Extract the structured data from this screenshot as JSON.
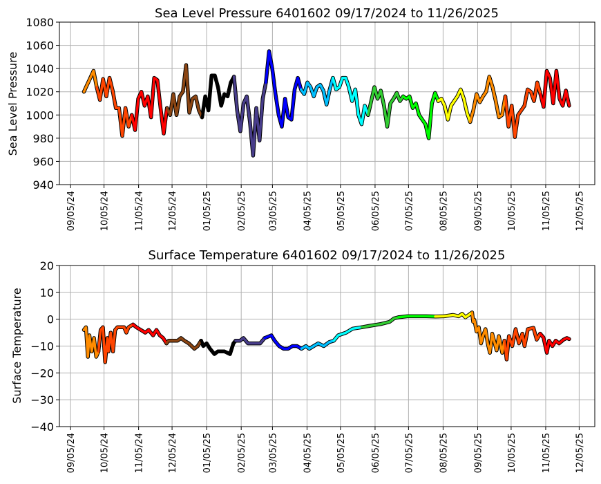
{
  "chart_data": [
    {
      "type": "line",
      "title": "Sea Level Pressure 6401602  09/17/2024 to 11/26/2025",
      "xlabel": "",
      "ylabel": "Sea Level Pressure",
      "ylim": [
        940,
        1080
      ],
      "yticks": [
        940,
        960,
        980,
        1000,
        1020,
        1040,
        1060,
        1080
      ],
      "ytick_labels": [
        "940",
        "960",
        "980",
        "1000",
        "1020",
        "1040",
        "1060",
        "1080"
      ],
      "xlim": [
        "2024-08-26",
        "2025-12-19"
      ],
      "xticks": [
        "2024-09-05",
        "2024-10-05",
        "2024-11-05",
        "2024-12-05",
        "2025-01-05",
        "2025-02-05",
        "2025-03-05",
        "2025-04-05",
        "2025-05-05",
        "2025-06-05",
        "2025-07-05",
        "2025-08-05",
        "2025-09-05",
        "2025-10-05",
        "2025-11-05",
        "2025-12-05"
      ],
      "xtick_labels": [
        "09/05/24",
        "10/05/24",
        "11/05/24",
        "12/05/24",
        "01/05/25",
        "02/05/25",
        "03/05/25",
        "04/05/25",
        "05/05/25",
        "06/05/25",
        "07/05/25",
        "08/05/25",
        "09/05/25",
        "10/05/25",
        "11/05/25",
        "12/05/25"
      ],
      "grid": true,
      "start_date": "2024-09-17",
      "end_date": "2025-11-26",
      "values_evenly_spaced": [
        1020,
        1026,
        1032,
        1038,
        1024,
        1013,
        1031,
        1016,
        1032,
        1021,
        1006,
        1006,
        982,
        1006,
        990,
        1000,
        987,
        1014,
        1020,
        1008,
        1016,
        998,
        1032,
        1030,
        1006,
        984,
        1006,
        1000,
        1018,
        1000,
        1016,
        1020,
        1043,
        1002,
        1014,
        1016,
        1004,
        998,
        1016,
        1004,
        1034,
        1034,
        1024,
        1008,
        1018,
        1016,
        1028,
        1033,
        1004,
        986,
        1010,
        1016,
        994,
        965,
        1006,
        978,
        1014,
        1028,
        1055,
        1040,
        1018,
        1000,
        990,
        1014,
        998,
        996,
        1022,
        1032,
        1022,
        1018,
        1028,
        1024,
        1016,
        1024,
        1026,
        1021,
        1009,
        1022,
        1032,
        1022,
        1024,
        1032,
        1032,
        1024,
        1012,
        1022,
        1000,
        992,
        1008,
        1000,
        1012,
        1024,
        1014,
        1021,
        1008,
        990,
        1010,
        1014,
        1019,
        1012,
        1016,
        1014,
        1016,
        1006,
        1010,
        1000,
        996,
        992,
        980,
        1010,
        1019,
        1012,
        1014,
        1008,
        996,
        1008,
        1012,
        1016,
        1022,
        1014,
        1002,
        994,
        1004,
        1018,
        1011,
        1016,
        1020,
        1033,
        1024,
        1012,
        998,
        1000,
        1016,
        990,
        1008,
        981,
        1000,
        1004,
        1008,
        1022,
        1020,
        1012,
        1028,
        1018,
        1007,
        1038,
        1032,
        1010,
        1038,
        1014,
        1008,
        1021,
        1008
      ]
    },
    {
      "type": "line",
      "title": "Surface Temperature 6401602  09/17/2024 to 11/26/2025",
      "xlabel": "",
      "ylabel": "Surface Temperature",
      "ylim": [
        -40,
        20
      ],
      "yticks": [
        -40,
        -30,
        -20,
        -10,
        0,
        10,
        20
      ],
      "ytick_labels": [
        "−40",
        "−30",
        "−20",
        "−10",
        "0",
        "10",
        "20"
      ],
      "xlim": [
        "2024-08-26",
        "2025-12-19"
      ],
      "xticks": [
        "2024-09-05",
        "2024-10-05",
        "2024-11-05",
        "2024-12-05",
        "2025-01-05",
        "2025-02-05",
        "2025-03-05",
        "2025-04-05",
        "2025-05-05",
        "2025-06-05",
        "2025-07-05",
        "2025-08-05",
        "2025-09-05",
        "2025-10-05",
        "2025-11-05",
        "2025-12-05"
      ],
      "xtick_labels": [
        "09/05/24",
        "10/05/24",
        "11/05/24",
        "12/05/24",
        "01/05/25",
        "02/05/25",
        "03/05/25",
        "04/05/25",
        "05/05/25",
        "06/05/25",
        "07/05/25",
        "08/05/25",
        "09/05/25",
        "10/05/25",
        "11/05/25",
        "12/05/25"
      ],
      "grid": true,
      "start_date": "2024-09-17",
      "days_since_start": [
        0,
        1.8,
        3.5,
        4.9,
        7,
        9,
        11,
        13,
        15,
        17,
        19,
        21,
        22,
        24,
        26,
        28,
        30,
        33,
        36,
        38,
        40,
        44,
        47,
        51,
        55,
        58,
        62,
        65,
        68,
        71,
        74,
        76,
        80,
        84,
        87,
        90,
        94,
        99,
        102,
        105,
        107,
        110,
        113,
        117,
        120,
        123,
        126,
        131,
        134,
        136,
        140,
        143,
        147,
        151,
        154,
        158,
        162,
        168,
        171,
        175,
        179,
        183,
        187,
        191,
        195,
        199,
        202,
        206,
        210,
        215,
        220,
        224,
        228,
        235,
        241,
        249,
        257,
        266,
        274,
        278,
        282,
        290,
        298,
        307,
        315,
        323,
        331,
        336,
        339,
        342,
        345,
        348,
        349,
        350,
        352,
        354,
        356,
        358,
        360,
        362,
        364,
        366,
        370,
        372,
        375,
        377,
        379,
        381,
        384,
        387,
        390,
        393,
        395,
        398,
        403,
        406,
        409,
        412,
        415,
        417,
        420,
        423,
        426,
        430,
        433,
        435
      ],
      "values": [
        -4,
        -3,
        -14,
        -6,
        -12,
        -7,
        -14,
        -12,
        -4,
        -3,
        -16,
        -7,
        -12,
        -5,
        -12,
        -4,
        -3,
        -3,
        -3,
        -5,
        -3,
        -2,
        -3,
        -4,
        -5,
        -4,
        -6,
        -4,
        -6,
        -7,
        -9,
        -8,
        -8,
        -8,
        -7,
        -8,
        -9,
        -11,
        -10,
        -8,
        -10,
        -9,
        -11,
        -13,
        -12,
        -12,
        -12,
        -13,
        -9,
        -8,
        -8,
        -7,
        -9,
        -9,
        -9,
        -9,
        -7,
        -6,
        -8,
        -10,
        -11,
        -11,
        -10,
        -10,
        -11,
        -10,
        -11,
        -10,
        -9,
        -10,
        -8.5,
        -8,
        -6,
        -5,
        -3.5,
        -3,
        -2.4,
        -1.8,
        -1,
        0.3,
        0.7,
        1.1,
        1.1,
        1.1,
        1,
        1.1,
        1.6,
        1.1,
        2,
        0.7,
        1.6,
        2.5,
        -1,
        -0.2,
        -4.6,
        -3,
        -9,
        -6,
        -3.7,
        -9,
        -12.5,
        -5.4,
        -11.6,
        -6.3,
        -12.5,
        -8,
        -15,
        -6.3,
        -10,
        -3.7,
        -9,
        -5.4,
        -10,
        -3.7,
        -3.2,
        -7.6,
        -5.4,
        -6.8,
        -12.5,
        -8,
        -10,
        -8,
        -9,
        -7.6,
        -7,
        -7.4
      ]
    }
  ],
  "month_colors": {
    "2024-09": "#ff8c00",
    "2024-10": "#ff4500",
    "2024-11": "#ff0000",
    "2024-12": "#8b4513",
    "2025-01": "#000000",
    "2025-02": "#483d8b",
    "2025-03": "#0000ff",
    "2025-04": "#00bfff",
    "2025-05": "#00ffff",
    "2025-06": "#32cd32",
    "2025-07": "#00ff00",
    "2025-08": "#ffff00",
    "2025-09": "#ff8c00",
    "2025-10": "#ff4500",
    "2025-11": "#ff0000"
  }
}
